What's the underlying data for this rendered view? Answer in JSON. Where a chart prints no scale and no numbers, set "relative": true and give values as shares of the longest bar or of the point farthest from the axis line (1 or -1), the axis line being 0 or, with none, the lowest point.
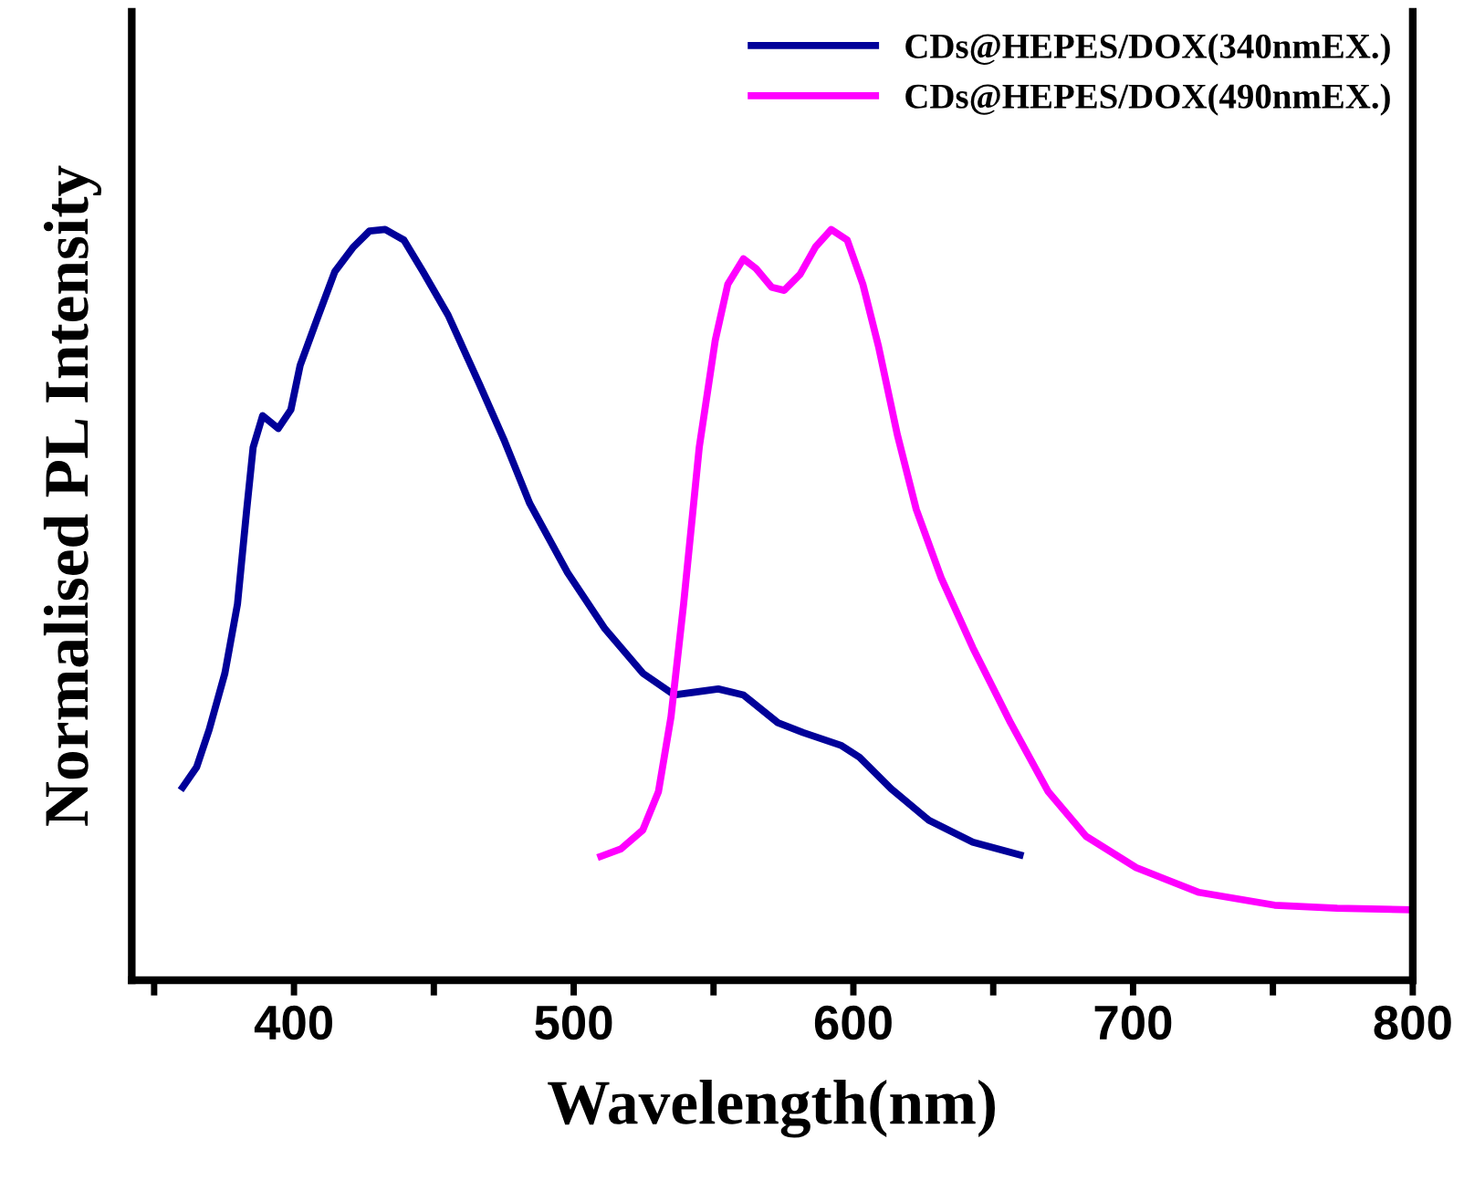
{
  "chart_data": {
    "type": "line",
    "relative": true,
    "xlabel": "Wavelength(nm)",
    "ylabel": "Normalised PL Intensity",
    "xlim": [
      342,
      800
    ],
    "xticks": [
      {
        "value": 350,
        "label": null
      },
      400,
      {
        "value": 450,
        "label": null
      },
      500,
      {
        "value": 550,
        "label": null
      },
      600,
      {
        "value": 650,
        "label": null
      },
      700,
      {
        "value": 750,
        "label": null
      },
      800
    ],
    "legend": "top right",
    "grid": false,
    "marker": "none",
    "line_style": "solid",
    "series": [
      {
        "name": "CDs@HEPES/DOX(340nmEX.)",
        "color": "#000099",
        "x": [
          360.2,
          365.2,
          369.7,
          375.3,
          379.8,
          383.1,
          385.4,
          388.8,
          394.4,
          398.9,
          402.2,
          407.9,
          414.6,
          421.3,
          427.0,
          432.6,
          439.3,
          446.1,
          455.1,
          466.3,
          475.3,
          484.3,
          497.8,
          511.2,
          524.7,
          536.0,
          551.7,
          560.7,
          573.0,
          582.0,
          595.5,
          602.2,
          613.5,
          627.0,
          642.7,
          659.6
        ],
        "values": [
          0.257,
          0.284,
          0.334,
          0.409,
          0.501,
          0.627,
          0.71,
          0.752,
          0.735,
          0.76,
          0.819,
          0.877,
          0.944,
          0.977,
          0.998,
          1,
          0.986,
          0.944,
          0.886,
          0.794,
          0.718,
          0.635,
          0.543,
          0.468,
          0.409,
          0.38,
          0.388,
          0.38,
          0.343,
          0.33,
          0.313,
          0.297,
          0.255,
          0.213,
          0.184,
          0.167
        ]
      },
      {
        "name": "CDs@HEPES/DOX(490nmEX.)",
        "color": "#ff00ff",
        "x": [
          509.7,
          516.9,
          524.7,
          530.3,
          534.8,
          539.3,
          544.9,
          550.6,
          555.1,
          560.7,
          565.2,
          570.8,
          575.3,
          580.9,
          586.5,
          592.1,
          597.8,
          603.4,
          609.0,
          615.7,
          622.5,
          631.5,
          642.7,
          656.2,
          669.7,
          683.1,
          701.1,
          723.6,
          750.6,
          773.0,
          798.9
        ],
        "values": [
          0.165,
          0.175,
          0.2,
          0.251,
          0.351,
          0.501,
          0.71,
          0.852,
          0.927,
          0.961,
          0.948,
          0.923,
          0.919,
          0.94,
          0.977,
          1,
          0.986,
          0.927,
          0.844,
          0.727,
          0.627,
          0.535,
          0.443,
          0.343,
          0.251,
          0.192,
          0.15,
          0.117,
          0.1,
          0.096,
          0.094
        ]
      }
    ]
  }
}
